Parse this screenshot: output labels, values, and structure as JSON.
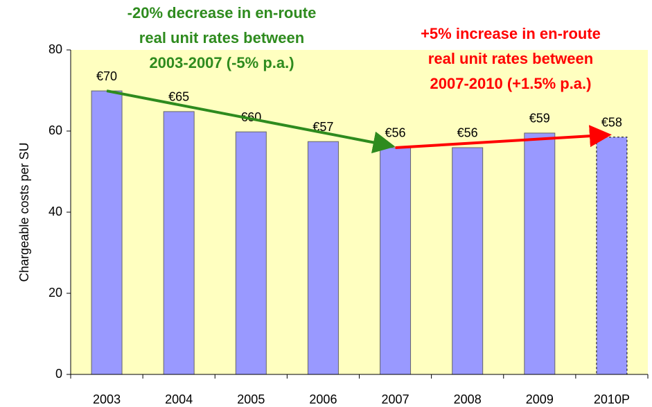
{
  "chart_data": {
    "type": "bar",
    "y_label": "Chargeable costs per SU",
    "categories": [
      "2003",
      "2004",
      "2005",
      "2006",
      "2007",
      "2008",
      "2009",
      "2010P"
    ],
    "values": [
      69.9,
      64.8,
      59.8,
      57.4,
      55.9,
      55.9,
      59.5,
      58.5
    ],
    "value_labels": [
      "€70",
      "€65",
      "€60",
      "€57",
      "€56",
      "€56",
      "€59",
      "€58"
    ],
    "color": "#9999ff",
    "ylim": [
      0,
      80
    ],
    "yticks": [
      0,
      20,
      40,
      60,
      80
    ],
    "annotations": [
      {
        "lines": [
          "-20% decrease in en-route",
          "real unit rates between",
          "2003-2007 (-5% p.a.)"
        ],
        "color": "#2e8b1e"
      },
      {
        "lines": [
          "+5% increase in en-route",
          "real unit rates between",
          "2007-2010 (+1.5% p.a.)"
        ],
        "color": "#ff0000"
      }
    ]
  }
}
